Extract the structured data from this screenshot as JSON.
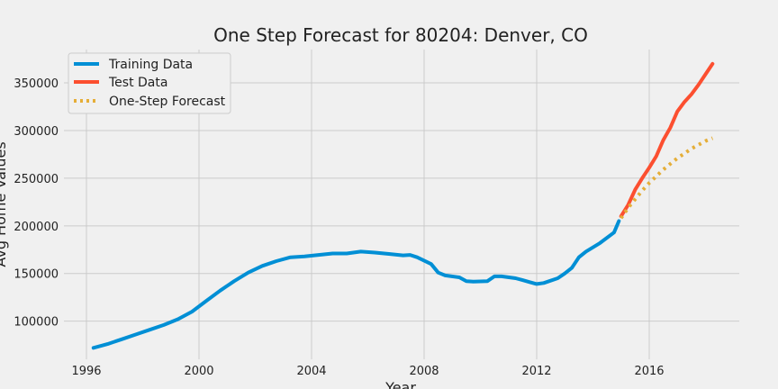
{
  "chart_data": {
    "type": "line",
    "title": "One Step Forecast for 80204: Denver, CO",
    "xlabel": "Year",
    "ylabel": "Avg Home Values",
    "xlim": [
      1995.2,
      2019.2
    ],
    "ylim": [
      60000,
      385000
    ],
    "x_ticks": [
      "1996",
      "2000",
      "2004",
      "2008",
      "2012",
      "2016"
    ],
    "y_ticks": [
      "100000",
      "150000",
      "200000",
      "250000",
      "300000",
      "350000"
    ],
    "grid": true,
    "legend_position": "top-left",
    "series": [
      {
        "name": "Training Data",
        "color": "#008fd5",
        "style": "solid",
        "x": [
          1996.25,
          1996.75,
          1997.25,
          1997.75,
          1998.25,
          1998.75,
          1999.25,
          1999.75,
          2000.25,
          2000.75,
          2001.25,
          2001.75,
          2002.25,
          2002.75,
          2003.25,
          2003.75,
          2004.25,
          2004.75,
          2005.25,
          2005.75,
          2006.25,
          2006.75,
          2007.25,
          2007.5,
          2007.75,
          2008.25,
          2008.5,
          2008.75,
          2009.25,
          2009.5,
          2009.75,
          2010.25,
          2010.5,
          2010.75,
          2011.25,
          2011.5,
          2011.75,
          2012.0,
          2012.25,
          2012.75,
          2013.0,
          2013.25,
          2013.5,
          2013.75,
          2014.25,
          2014.75,
          2014.92
        ],
        "y": [
          72000,
          76000,
          81000,
          86000,
          91000,
          96000,
          102000,
          110000,
          121000,
          132000,
          142000,
          151000,
          158000,
          163000,
          167000,
          168000,
          169500,
          171000,
          171000,
          173000,
          172000,
          170500,
          169000,
          169500,
          167000,
          160000,
          151000,
          148000,
          146000,
          142000,
          141500,
          142000,
          147000,
          147000,
          145000,
          143000,
          141000,
          139000,
          140000,
          145000,
          150000,
          156000,
          167000,
          173000,
          182000,
          193000,
          205000
        ]
      },
      {
        "name": "Test Data",
        "color": "#fc4f30",
        "style": "solid",
        "x": [
          2015.0,
          2015.25,
          2015.5,
          2015.75,
          2016.0,
          2016.25,
          2016.5,
          2016.75,
          2017.0,
          2017.25,
          2017.5,
          2017.75,
          2018.0,
          2018.25
        ],
        "y": [
          210000,
          222000,
          238000,
          250000,
          261000,
          273000,
          290000,
          303000,
          320000,
          330000,
          338000,
          348000,
          359000,
          370000
        ]
      },
      {
        "name": "One-Step Forecast",
        "color": "#e5ae38",
        "style": "dotted",
        "x": [
          2015.0,
          2015.25,
          2015.5,
          2015.75,
          2016.0,
          2016.25,
          2016.5,
          2016.75,
          2017.0,
          2017.25,
          2017.5,
          2017.75,
          2018.0,
          2018.25
        ],
        "y": [
          208000,
          219000,
          228000,
          237000,
          245000,
          252000,
          259000,
          265000,
          271000,
          276000,
          281000,
          285000,
          289000,
          292000
        ]
      }
    ]
  }
}
